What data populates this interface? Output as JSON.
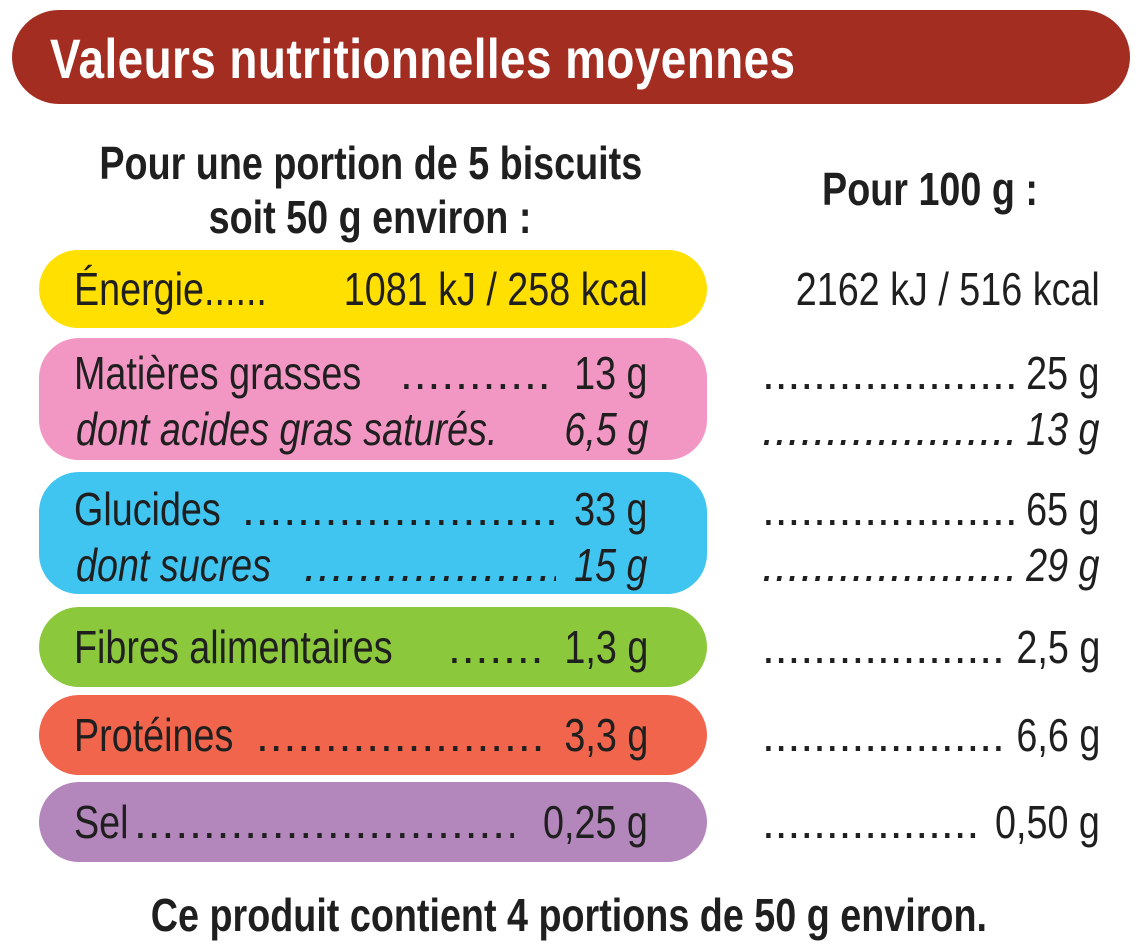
{
  "header": {
    "title": "Valeurs nutritionnelles moyennes"
  },
  "columns": {
    "portion_line1": "Pour une portion de 5 biscuits",
    "portion_line2": "soit 50 g environ :",
    "per100": "Pour 100 g :"
  },
  "dots": "........................................",
  "rows": {
    "energie": {
      "label": "Énergie",
      "dots": "......",
      "portion": "1081 kJ / 258 kcal",
      "per100": "2162 kJ / 516 kcal",
      "color": "#ffe000"
    },
    "matieres": {
      "label": "Matières grasses",
      "portion": "13 g",
      "per100": "25 g",
      "color": "#f297c4"
    },
    "satures": {
      "label": "dont acides gras saturés.",
      "portion": "6,5 g",
      "per100": "13 g"
    },
    "glucides": {
      "label": "Glucides",
      "portion": "33 g",
      "per100": "65 g",
      "color": "#40c4f0"
    },
    "sucres": {
      "label": "dont sucres",
      "portion": "15 g",
      "per100": "29 g"
    },
    "fibres": {
      "label": "Fibres alimentaires",
      "portion": "1,3 g",
      "per100": "2,5 g",
      "color": "#8cc83c"
    },
    "proteines": {
      "label": "Protéines",
      "portion": "3,3 g",
      "per100": "6,6 g",
      "color": "#f0654c"
    },
    "sel": {
      "label": "Sel",
      "portion": "0,25 g",
      "per100": "0,50 g",
      "color": "#b487bc"
    }
  },
  "footer": {
    "text": "Ce produit contient 4 portions de 50 g environ."
  }
}
